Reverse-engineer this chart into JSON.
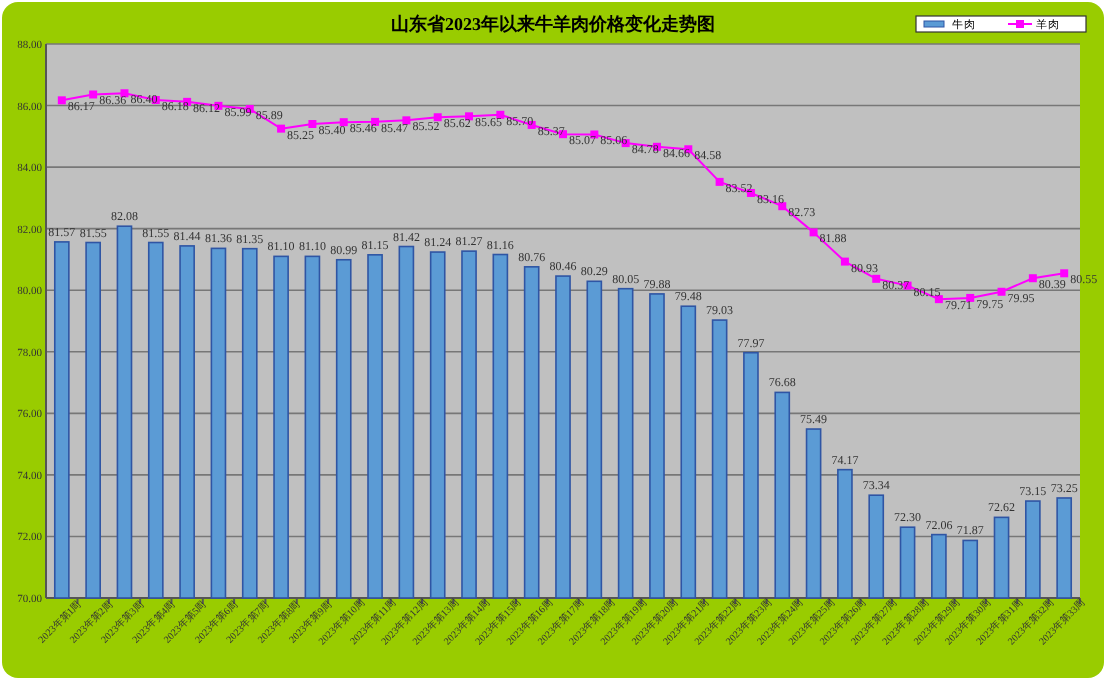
{
  "chart_data": {
    "type": "bar",
    "title": "山东省2023年以来牛羊肉价格变化走势图",
    "categories": [
      "2023年第1周",
      "2023年第2周",
      "2023年第3周",
      "2023年第4周",
      "2023年第5周",
      "2023年第6周",
      "2023年第7周",
      "2023年第8周",
      "2023年第9周",
      "2023年第10周",
      "2023年第11周",
      "2023年第12周",
      "2023年第13周",
      "2023年第14周",
      "2023年第15周",
      "2023年第16周",
      "2023年第17周",
      "2023年第18周",
      "2023年第19周",
      "2023年第20周",
      "2023年第21周",
      "2023年第22周",
      "2023年第23周",
      "2023年第24周",
      "2023年第25周",
      "2023年第26周",
      "2023年第27周",
      "2023年第28周",
      "2023年第29周",
      "2023年第30周",
      "2023年第31周",
      "2023年第32周",
      "2023年第33周"
    ],
    "series": [
      {
        "name": "牛肉",
        "type": "bar",
        "color": "#5b9bd5",
        "values": [
          81.57,
          81.55,
          82.08,
          81.55,
          81.44,
          81.36,
          81.35,
          81.1,
          81.1,
          80.99,
          81.15,
          81.42,
          81.24,
          81.27,
          81.16,
          80.76,
          80.46,
          80.29,
          80.05,
          79.88,
          79.48,
          79.03,
          77.97,
          76.68,
          75.49,
          74.17,
          73.34,
          72.3,
          72.06,
          71.87,
          72.62,
          73.15,
          73.25
        ],
        "value_labels": [
          "81.57",
          "81.55",
          "82.08",
          "81.55",
          "81.44",
          "81.36",
          "81.35",
          "81.10",
          "81.10",
          "80.99",
          "81.15",
          "81.42",
          "81.24",
          "81.27",
          "81.16",
          "80.76",
          "80.46",
          "80.29",
          "80.05",
          "79.88",
          "79.48",
          "79.03",
          "77.97",
          "76.68",
          "75.49",
          "74.17",
          "73.34",
          "72.30",
          "72.06",
          "71.87",
          "72.62",
          "73.15",
          "73.25"
        ]
      },
      {
        "name": "羊肉",
        "type": "line",
        "color": "#ff00ff",
        "marker": "square",
        "values": [
          86.17,
          86.36,
          86.4,
          86.18,
          86.12,
          85.99,
          85.89,
          85.25,
          85.4,
          85.46,
          85.47,
          85.52,
          85.62,
          85.65,
          85.7,
          85.37,
          85.07,
          85.06,
          84.78,
          84.66,
          84.58,
          83.52,
          83.16,
          82.73,
          81.88,
          80.93,
          80.37,
          80.15,
          79.71,
          79.75,
          79.95,
          80.39,
          80.55
        ],
        "value_labels": [
          "86.17",
          "86.36",
          "86.40",
          "86.18",
          "86.12",
          "85.99",
          "85.89",
          "85.25",
          "85.40",
          "85.46",
          "85.47",
          "85.52",
          "85.62",
          "85.65",
          "85.70",
          "85.37",
          "85.07",
          "85.06",
          "84.78",
          "84.66",
          "84.58",
          "83.52",
          "83.16",
          "82.73",
          "81.88",
          "80.93",
          "80.37",
          "80.15",
          "79.71",
          "79.75",
          "79.95",
          "80.39",
          "80.55"
        ]
      }
    ],
    "ylim": [
      70,
      88
    ],
    "yticks": [
      {
        "value": 70,
        "label": "70.00"
      },
      {
        "value": 72,
        "label": "72.00"
      },
      {
        "value": 74,
        "label": "74.00"
      },
      {
        "value": 76,
        "label": "76.00"
      },
      {
        "value": 78,
        "label": "78.00"
      },
      {
        "value": 80,
        "label": "80.00"
      },
      {
        "value": 82,
        "label": "82.00"
      },
      {
        "value": 84,
        "label": "84.00"
      },
      {
        "value": 86,
        "label": "86.00"
      },
      {
        "value": 88,
        "label": "88.00"
      }
    ],
    "grid": "y",
    "legend": "top right",
    "data_labels": true
  }
}
